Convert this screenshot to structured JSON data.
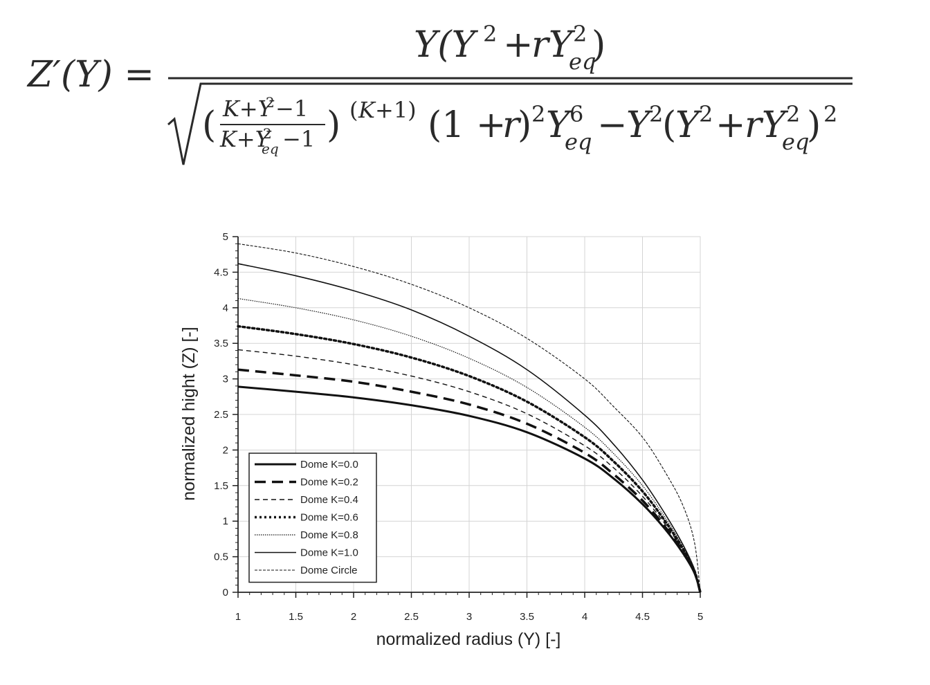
{
  "equation": {
    "lhs": "Z′(Y) =",
    "numerator": "Y(Y² + rY²eq)",
    "radicand": "((K+Y²−1)/(K+Y²eq−1))^(K+1) (1 + r)² Y⁶eq − Y²(Y² + rY²eq)²"
  },
  "chart_data": {
    "type": "line",
    "xlabel": "normalized radius (Y) [-]",
    "ylabel": "normalized hight (Z) [-]",
    "xlim": [
      1,
      5
    ],
    "ylim": [
      0,
      5
    ],
    "xticks": [
      "1",
      "1.5",
      "2",
      "2.5",
      "3",
      "3.5",
      "4",
      "4.5",
      "5"
    ],
    "yticks": [
      "0",
      "0.5",
      "1",
      "1.5",
      "2",
      "2.5",
      "3",
      "3.5",
      "4",
      "4.5",
      "5"
    ],
    "grid": true,
    "legend_position": "bottom-left",
    "x": [
      1.0,
      1.5,
      2.0,
      2.5,
      3.0,
      3.5,
      4.0,
      4.25,
      4.5,
      4.7,
      4.85,
      4.95,
      5.0
    ],
    "series": [
      {
        "name": "Dome K=0.0",
        "values": [
          2.89,
          2.82,
          2.74,
          2.63,
          2.48,
          2.25,
          1.88,
          1.6,
          1.24,
          0.88,
          0.55,
          0.27,
          0.0
        ]
      },
      {
        "name": "Dome K=0.2",
        "values": [
          3.13,
          3.05,
          2.96,
          2.82,
          2.64,
          2.37,
          1.96,
          1.66,
          1.29,
          0.91,
          0.57,
          0.28,
          0.0
        ]
      },
      {
        "name": "Dome K=0.4",
        "values": [
          3.41,
          3.32,
          3.2,
          3.04,
          2.82,
          2.51,
          2.06,
          1.75,
          1.35,
          0.95,
          0.59,
          0.29,
          0.0
        ]
      },
      {
        "name": "Dome K=0.6",
        "values": [
          3.74,
          3.63,
          3.49,
          3.3,
          3.04,
          2.68,
          2.18,
          1.84,
          1.42,
          0.99,
          0.61,
          0.3,
          0.0
        ]
      },
      {
        "name": "Dome K=0.8",
        "values": [
          4.13,
          4.0,
          3.83,
          3.6,
          3.29,
          2.88,
          2.32,
          1.95,
          1.5,
          1.04,
          0.64,
          0.31,
          0.0
        ]
      },
      {
        "name": "Dome K=1.0",
        "values": [
          4.62,
          4.45,
          4.24,
          3.97,
          3.6,
          3.13,
          2.49,
          2.08,
          1.58,
          1.09,
          0.67,
          0.32,
          0.0
        ]
      },
      {
        "name": "Dome Circle",
        "values": [
          4.9,
          4.77,
          4.58,
          4.33,
          4.0,
          3.57,
          3.0,
          2.61,
          2.18,
          1.68,
          1.22,
          0.7,
          0.0
        ]
      }
    ],
    "styles": [
      {
        "width": 3,
        "dash": ""
      },
      {
        "width": 3.5,
        "dash": "16,9"
      },
      {
        "width": 1.4,
        "dash": "7,5"
      },
      {
        "width": 3.5,
        "dash": "3,4"
      },
      {
        "width": 1.2,
        "dash": "1.5,1.5"
      },
      {
        "width": 1.6,
        "dash": ""
      },
      {
        "width": 1.1,
        "dash": "4,2"
      }
    ],
    "colors": {
      "line": "#111111",
      "grid": "#d4d4d4",
      "axis": "#222222"
    }
  }
}
